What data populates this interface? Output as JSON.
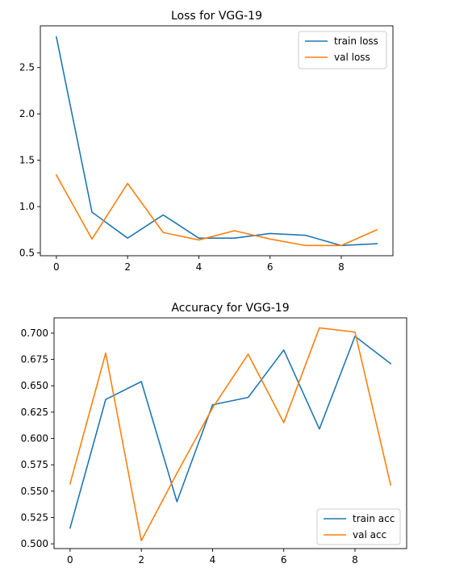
{
  "chart_data": [
    {
      "type": "line",
      "title": "Loss for VGG-19",
      "xlabel": "",
      "ylabel": "",
      "x": [
        0,
        1,
        2,
        3,
        4,
        5,
        6,
        7,
        8,
        9
      ],
      "xlim": [
        -0.45,
        9.45
      ],
      "ylim": [
        0.47,
        2.95
      ],
      "xticks": [
        0,
        2,
        4,
        6,
        8
      ],
      "yticks": [
        0.5,
        1.0,
        1.5,
        2.0,
        2.5
      ],
      "ytick_labels": [
        "0.5",
        "1.0",
        "1.5",
        "2.0",
        "2.5"
      ],
      "xtick_labels": [
        "0",
        "2",
        "4",
        "6",
        "8"
      ],
      "grid": false,
      "legend_position": "upper right",
      "series": [
        {
          "name": "train loss",
          "color": "#1f77b4",
          "values": [
            2.83,
            0.94,
            0.66,
            0.91,
            0.66,
            0.66,
            0.71,
            0.69,
            0.58,
            0.6
          ]
        },
        {
          "name": "val loss",
          "color": "#ff7f0e",
          "values": [
            1.34,
            0.65,
            1.25,
            0.72,
            0.64,
            0.74,
            0.65,
            0.58,
            0.58,
            0.75
          ]
        }
      ]
    },
    {
      "type": "line",
      "title": "Accuracy for VGG-19",
      "xlabel": "",
      "ylabel": "",
      "x": [
        0,
        1,
        2,
        3,
        4,
        5,
        6,
        7,
        8,
        9
      ],
      "xlim": [
        -0.45,
        9.45
      ],
      "ylim": [
        0.4955,
        0.7145
      ],
      "xticks": [
        0,
        2,
        4,
        6,
        8
      ],
      "yticks": [
        0.5,
        0.525,
        0.55,
        0.575,
        0.6,
        0.625,
        0.65,
        0.675,
        0.7
      ],
      "ytick_labels": [
        "0.500",
        "0.525",
        "0.550",
        "0.575",
        "0.600",
        "0.625",
        "0.650",
        "0.675",
        "0.700"
      ],
      "xtick_labels": [
        "0",
        "2",
        "4",
        "6",
        "8"
      ],
      "grid": false,
      "legend_position": "lower right",
      "series": [
        {
          "name": "train acc",
          "color": "#1f77b4",
          "values": [
            0.515,
            0.637,
            0.654,
            0.54,
            0.632,
            0.639,
            0.684,
            0.609,
            0.697,
            0.671
          ]
        },
        {
          "name": "val acc",
          "color": "#ff7f0e",
          "values": [
            0.557,
            0.681,
            0.503,
            0.567,
            0.629,
            0.68,
            0.615,
            0.705,
            0.701,
            0.556
          ]
        }
      ]
    }
  ]
}
